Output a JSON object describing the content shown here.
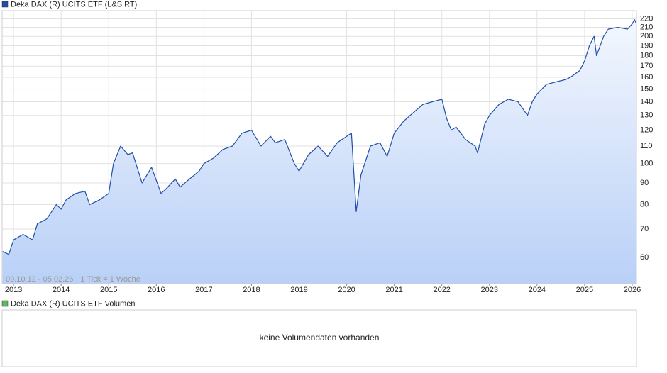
{
  "chart_data": [
    {
      "type": "line",
      "series": [
        {
          "name": "Deka DAX (R) UCITS ETF (L&S RT)",
          "color": "#1f4fa8",
          "values": [
            62,
            61,
            66,
            68,
            66,
            72,
            74,
            80,
            78,
            82,
            85,
            86,
            80,
            82,
            85,
            100,
            110,
            105,
            106,
            90,
            98,
            85,
            87,
            92,
            88,
            92,
            96,
            100,
            103,
            108,
            110,
            118,
            120,
            110,
            116,
            112,
            114,
            100,
            96,
            105,
            110,
            104,
            112,
            116,
            118,
            77,
            94,
            110,
            112,
            104,
            118,
            126,
            132,
            138,
            140,
            142,
            128,
            120,
            122,
            114,
            110,
            106,
            124,
            130,
            138,
            142,
            140,
            130,
            140,
            146,
            154,
            156,
            158,
            160,
            166,
            175,
            190,
            200,
            180,
            200,
            208,
            210,
            208,
            214,
            219,
            214
          ]
        }
      ],
      "x": [
        2012.77,
        2012.9,
        2013.0,
        2013.2,
        2013.4,
        2013.5,
        2013.7,
        2013.9,
        2014.0,
        2014.1,
        2014.3,
        2014.5,
        2014.6,
        2014.8,
        2015.0,
        2015.1,
        2015.25,
        2015.4,
        2015.5,
        2015.7,
        2015.9,
        2016.1,
        2016.2,
        2016.4,
        2016.5,
        2016.7,
        2016.9,
        2017.0,
        2017.2,
        2017.4,
        2017.6,
        2017.8,
        2018.0,
        2018.2,
        2018.4,
        2018.5,
        2018.7,
        2018.9,
        2019.0,
        2019.2,
        2019.4,
        2019.6,
        2019.8,
        2020.0,
        2020.1,
        2020.2,
        2020.3,
        2020.5,
        2020.7,
        2020.85,
        2021.0,
        2021.2,
        2021.4,
        2021.6,
        2021.8,
        2022.0,
        2022.1,
        2022.2,
        2022.3,
        2022.5,
        2022.7,
        2022.75,
        2022.9,
        2023.0,
        2023.2,
        2023.4,
        2023.6,
        2023.8,
        2023.9,
        2024.0,
        2024.2,
        2024.4,
        2024.6,
        2024.7,
        2024.9,
        2025.0,
        2025.1,
        2025.2,
        2025.25,
        2025.4,
        2025.5,
        2025.7,
        2025.9,
        2026.0,
        2026.05,
        2026.09
      ],
      "xlim": [
        2012.76,
        2026.09
      ],
      "xticks": [
        2013,
        2014,
        2015,
        2016,
        2017,
        2018,
        2019,
        2020,
        2021,
        2022,
        2023,
        2024,
        2025,
        2026
      ],
      "ylim": [
        52,
        230
      ],
      "yticks": [
        60,
        70,
        80,
        90,
        100,
        110,
        120,
        130,
        140,
        150,
        160,
        170,
        180,
        190,
        200,
        210,
        220
      ],
      "log_scale": true,
      "grid": true,
      "annotations": [
        "09.10.12 - 05.02.26",
        "1 Tick = 1 Woche"
      ]
    },
    {
      "type": "empty",
      "series": [
        {
          "name": "Deka DAX (R) UCITS ETF Volumen",
          "color": "#5cb85c"
        }
      ],
      "message": "keine Volumendaten vorhanden"
    }
  ]
}
